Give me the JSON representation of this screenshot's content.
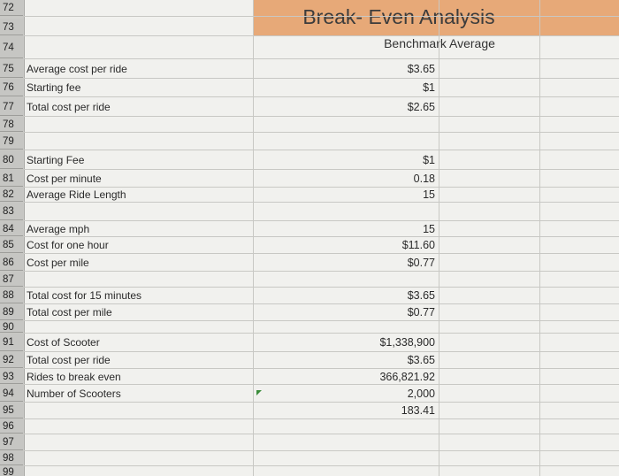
{
  "sheet": {
    "title": "Break- Even Analysis",
    "subtitle": "Benchmark Average",
    "colors": {
      "title_band": "#e7a978",
      "grid": "#c8c8c4",
      "row_header": "#c6c6c3"
    },
    "rows": [
      {
        "num": "72",
        "label": "",
        "value": ""
      },
      {
        "num": "73",
        "label": "",
        "value": ""
      },
      {
        "num": "74",
        "label": "",
        "value": ""
      },
      {
        "num": "75",
        "label": "Average cost per ride",
        "value": "$3.65"
      },
      {
        "num": "76",
        "label": "Starting fee",
        "value": "$1"
      },
      {
        "num": "77",
        "label": "Total cost per ride",
        "value": "$2.65"
      },
      {
        "num": "78",
        "label": "",
        "value": ""
      },
      {
        "num": "79",
        "label": "",
        "value": ""
      },
      {
        "num": "80",
        "label": "Starting Fee",
        "value": "$1"
      },
      {
        "num": "81",
        "label": "Cost per minute",
        "value": "0.18"
      },
      {
        "num": "82",
        "label": "Average Ride Length",
        "value": "15"
      },
      {
        "num": "83",
        "label": "",
        "value": ""
      },
      {
        "num": "84",
        "label": "Average mph",
        "value": "15"
      },
      {
        "num": "85",
        "label": "Cost for one hour",
        "value": "$11.60"
      },
      {
        "num": "86",
        "label": "Cost per mile",
        "value": "$0.77"
      },
      {
        "num": "87",
        "label": "",
        "value": ""
      },
      {
        "num": "88",
        "label": "Total cost for 15 minutes",
        "value": "$3.65"
      },
      {
        "num": "89",
        "label": "Total cost per mile",
        "value": "$0.77"
      },
      {
        "num": "90",
        "label": "",
        "value": ""
      },
      {
        "num": "91",
        "label": "Cost of Scooter",
        "value": "$1,338,900"
      },
      {
        "num": "92",
        "label": "Total cost per ride",
        "value": "$3.65"
      },
      {
        "num": "93",
        "label": "Rides to break even",
        "value": "366,821.92"
      },
      {
        "num": "94",
        "label": "Number of Scooters",
        "value": "2,000"
      },
      {
        "num": "95",
        "label": "",
        "value": "183.41"
      },
      {
        "num": "96",
        "label": "",
        "value": ""
      },
      {
        "num": "97",
        "label": "",
        "value": ""
      },
      {
        "num": "98",
        "label": "",
        "value": ""
      },
      {
        "num": "99",
        "label": "",
        "value": ""
      }
    ]
  }
}
